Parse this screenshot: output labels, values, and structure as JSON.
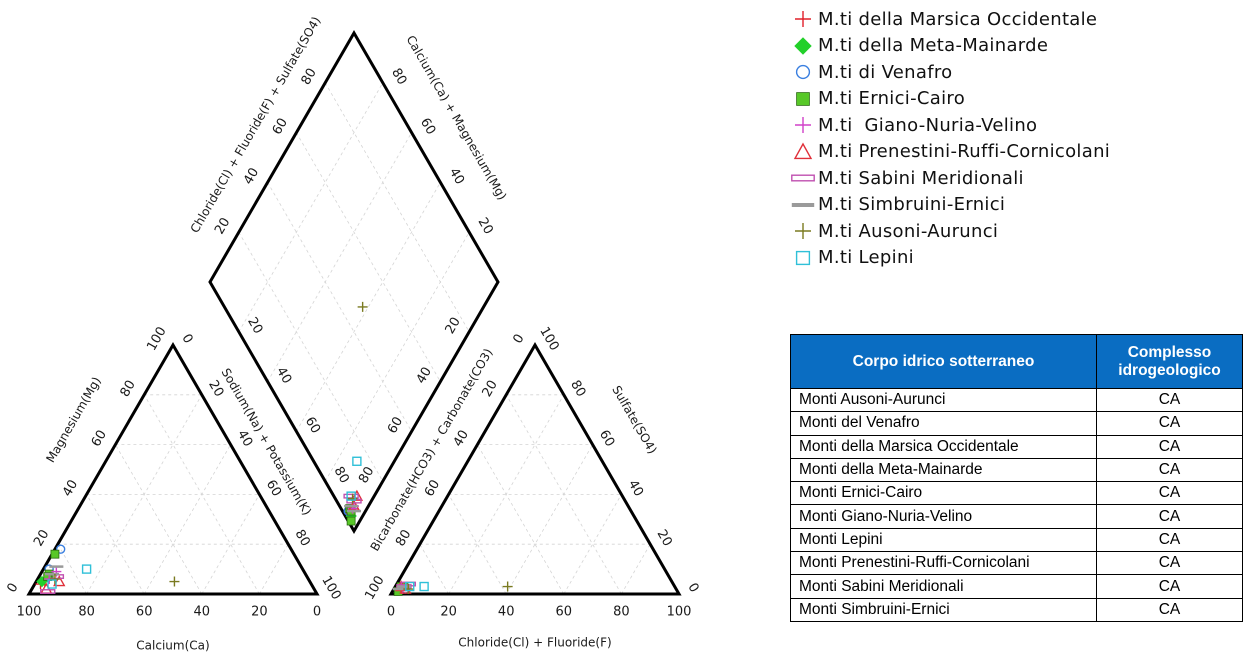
{
  "chart_data": {
    "type": "scatter",
    "subtype": "piper-diagram",
    "cation_triangle": {
      "axes": {
        "bottom": "Calcium(Ca)",
        "left": "Magnesium(Mg)",
        "right": "Sodium(Na) + Potassium(K)"
      },
      "bottom_ticks": [
        "100",
        "80",
        "60",
        "40",
        "20",
        "0"
      ],
      "left_ticks": [
        "0",
        "20",
        "40",
        "60",
        "80",
        "100"
      ],
      "right_ticks": [
        "0",
        "20",
        "40",
        "60",
        "80",
        "100"
      ]
    },
    "anion_triangle": {
      "axes": {
        "bottom": "Chloride(Cl) + Fluoride(F)",
        "left": "Bicarbonate(HCO3) + Carbonate(CO3)",
        "right": "Sulfate(SO4)"
      },
      "bottom_ticks": [
        "0",
        "20",
        "40",
        "60",
        "80",
        "100"
      ],
      "left_ticks": [
        "100",
        "80",
        "60",
        "40",
        "20",
        "0"
      ],
      "right_ticks": [
        "100",
        "80",
        "60",
        "40",
        "20",
        "0"
      ]
    },
    "diamond": {
      "axes": {
        "upper_left": "Chloride(Cl) + Fluoride(F) + Sulfate(SO4)",
        "upper_right": "Calcium(Ca) + Magnesium(Mg)"
      },
      "upper_left_ticks": [
        "20",
        "40",
        "60",
        "80"
      ],
      "upper_right_ticks": [
        "80",
        "60",
        "40",
        "20"
      ],
      "lower_left_ticks": [
        "20",
        "40",
        "60",
        "80"
      ],
      "lower_right_ticks": [
        "20",
        "40",
        "60",
        "80"
      ]
    },
    "series": [
      {
        "name": "M.ti della Marsica Occidentale",
        "marker": "plus",
        "color": "#e0202a",
        "points": [
          {
            "ca": 94,
            "mg": 4,
            "cl": 2,
            "so4": 3
          },
          {
            "ca": 92,
            "mg": 5,
            "cl": 3,
            "so4": 2
          }
        ]
      },
      {
        "name": "M.ti della Meta-Mainarde",
        "marker": "diamond",
        "color": "#22d02a",
        "points": [
          {
            "ca": 93,
            "mg": 5,
            "cl": 2,
            "so4": 2
          }
        ]
      },
      {
        "name": "M.ti di Venafro",
        "marker": "circle",
        "color": "#3a7fe0",
        "points": [
          {
            "ca": 80,
            "mg": 18,
            "cl": 3,
            "so4": 3
          },
          {
            "ca": 88,
            "mg": 10,
            "cl": 4,
            "so4": 2
          }
        ]
      },
      {
        "name": "M.ti Ernici-Cairo",
        "marker": "square-filled",
        "color": "#58c828",
        "points": [
          {
            "ca": 83,
            "mg": 16,
            "cl": 2,
            "so4": 1
          },
          {
            "ca": 89,
            "mg": 8,
            "cl": 3,
            "so4": 3
          },
          {
            "ca": 90,
            "mg": 7,
            "cl": 2,
            "so4": 3
          }
        ]
      },
      {
        "name": "M.ti  Giano-Nuria-Velino",
        "marker": "plus",
        "color": "#d040c8",
        "points": [
          {
            "ca": 86,
            "mg": 9,
            "cl": 3,
            "so4": 2
          },
          {
            "ca": 90,
            "mg": 6,
            "cl": 3,
            "so4": 2
          }
        ]
      },
      {
        "name": "M.ti Prenestini-Ruffi-Cornicolani",
        "marker": "triangle",
        "color": "#e0303a",
        "points": [
          {
            "ca": 87,
            "mg": 5,
            "cl": 4,
            "so4": 2
          },
          {
            "ca": 93,
            "mg": 2,
            "cl": 2,
            "so4": 3
          }
        ]
      },
      {
        "name": "M.ti Sabini Meridionali",
        "marker": "bar-double",
        "color": "#c050b0",
        "points": [
          {
            "ca": 87,
            "mg": 7,
            "cl": 4,
            "so4": 4
          },
          {
            "ca": 93,
            "mg": 1,
            "cl": 3,
            "so4": 3
          }
        ]
      },
      {
        "name": "M.ti Simbruini-Ernici",
        "marker": "bar",
        "color": "#9a9a9a",
        "points": [
          {
            "ca": 85,
            "mg": 11,
            "cl": 2,
            "so4": 2
          },
          {
            "ca": 88,
            "mg": 8,
            "cl": 3,
            "so4": 3
          }
        ]
      },
      {
        "name": "M.ti Ausoni-Aurunci",
        "marker": "plus",
        "color": "#7a7a20",
        "points": [
          {
            "ca": 47,
            "mg": 5,
            "cl": 39,
            "so4": 3
          },
          {
            "ca": 88,
            "mg": 6,
            "cl": 5,
            "so4": 2
          }
        ]
      },
      {
        "name": "M.ti Lepini",
        "marker": "square",
        "color": "#30c0d8",
        "points": [
          {
            "ca": 75,
            "mg": 10,
            "cl": 10,
            "so4": 3
          },
          {
            "ca": 90,
            "mg": 4,
            "cl": 5,
            "so4": 3
          }
        ]
      }
    ]
  },
  "table": {
    "headers": [
      "Corpo idrico sotterraneo",
      "Complesso idrogeologico"
    ],
    "rows": [
      [
        "Monti Ausoni-Aurunci",
        "CA"
      ],
      [
        "Monti del Venafro",
        "CA"
      ],
      [
        "Monti della Marsica Occidentale",
        "CA"
      ],
      [
        "Monti della Meta-Mainarde",
        "CA"
      ],
      [
        "Monti Ernici-Cairo",
        "CA"
      ],
      [
        "Monti Giano-Nuria-Velino",
        "CA"
      ],
      [
        "Monti Lepini",
        "CA"
      ],
      [
        "Monti Prenestini-Ruffi-Cornicolani",
        "CA"
      ],
      [
        "Monti Sabini Meridionali",
        "CA"
      ],
      [
        "Monti Simbruini-Ernici",
        "CA"
      ]
    ]
  }
}
